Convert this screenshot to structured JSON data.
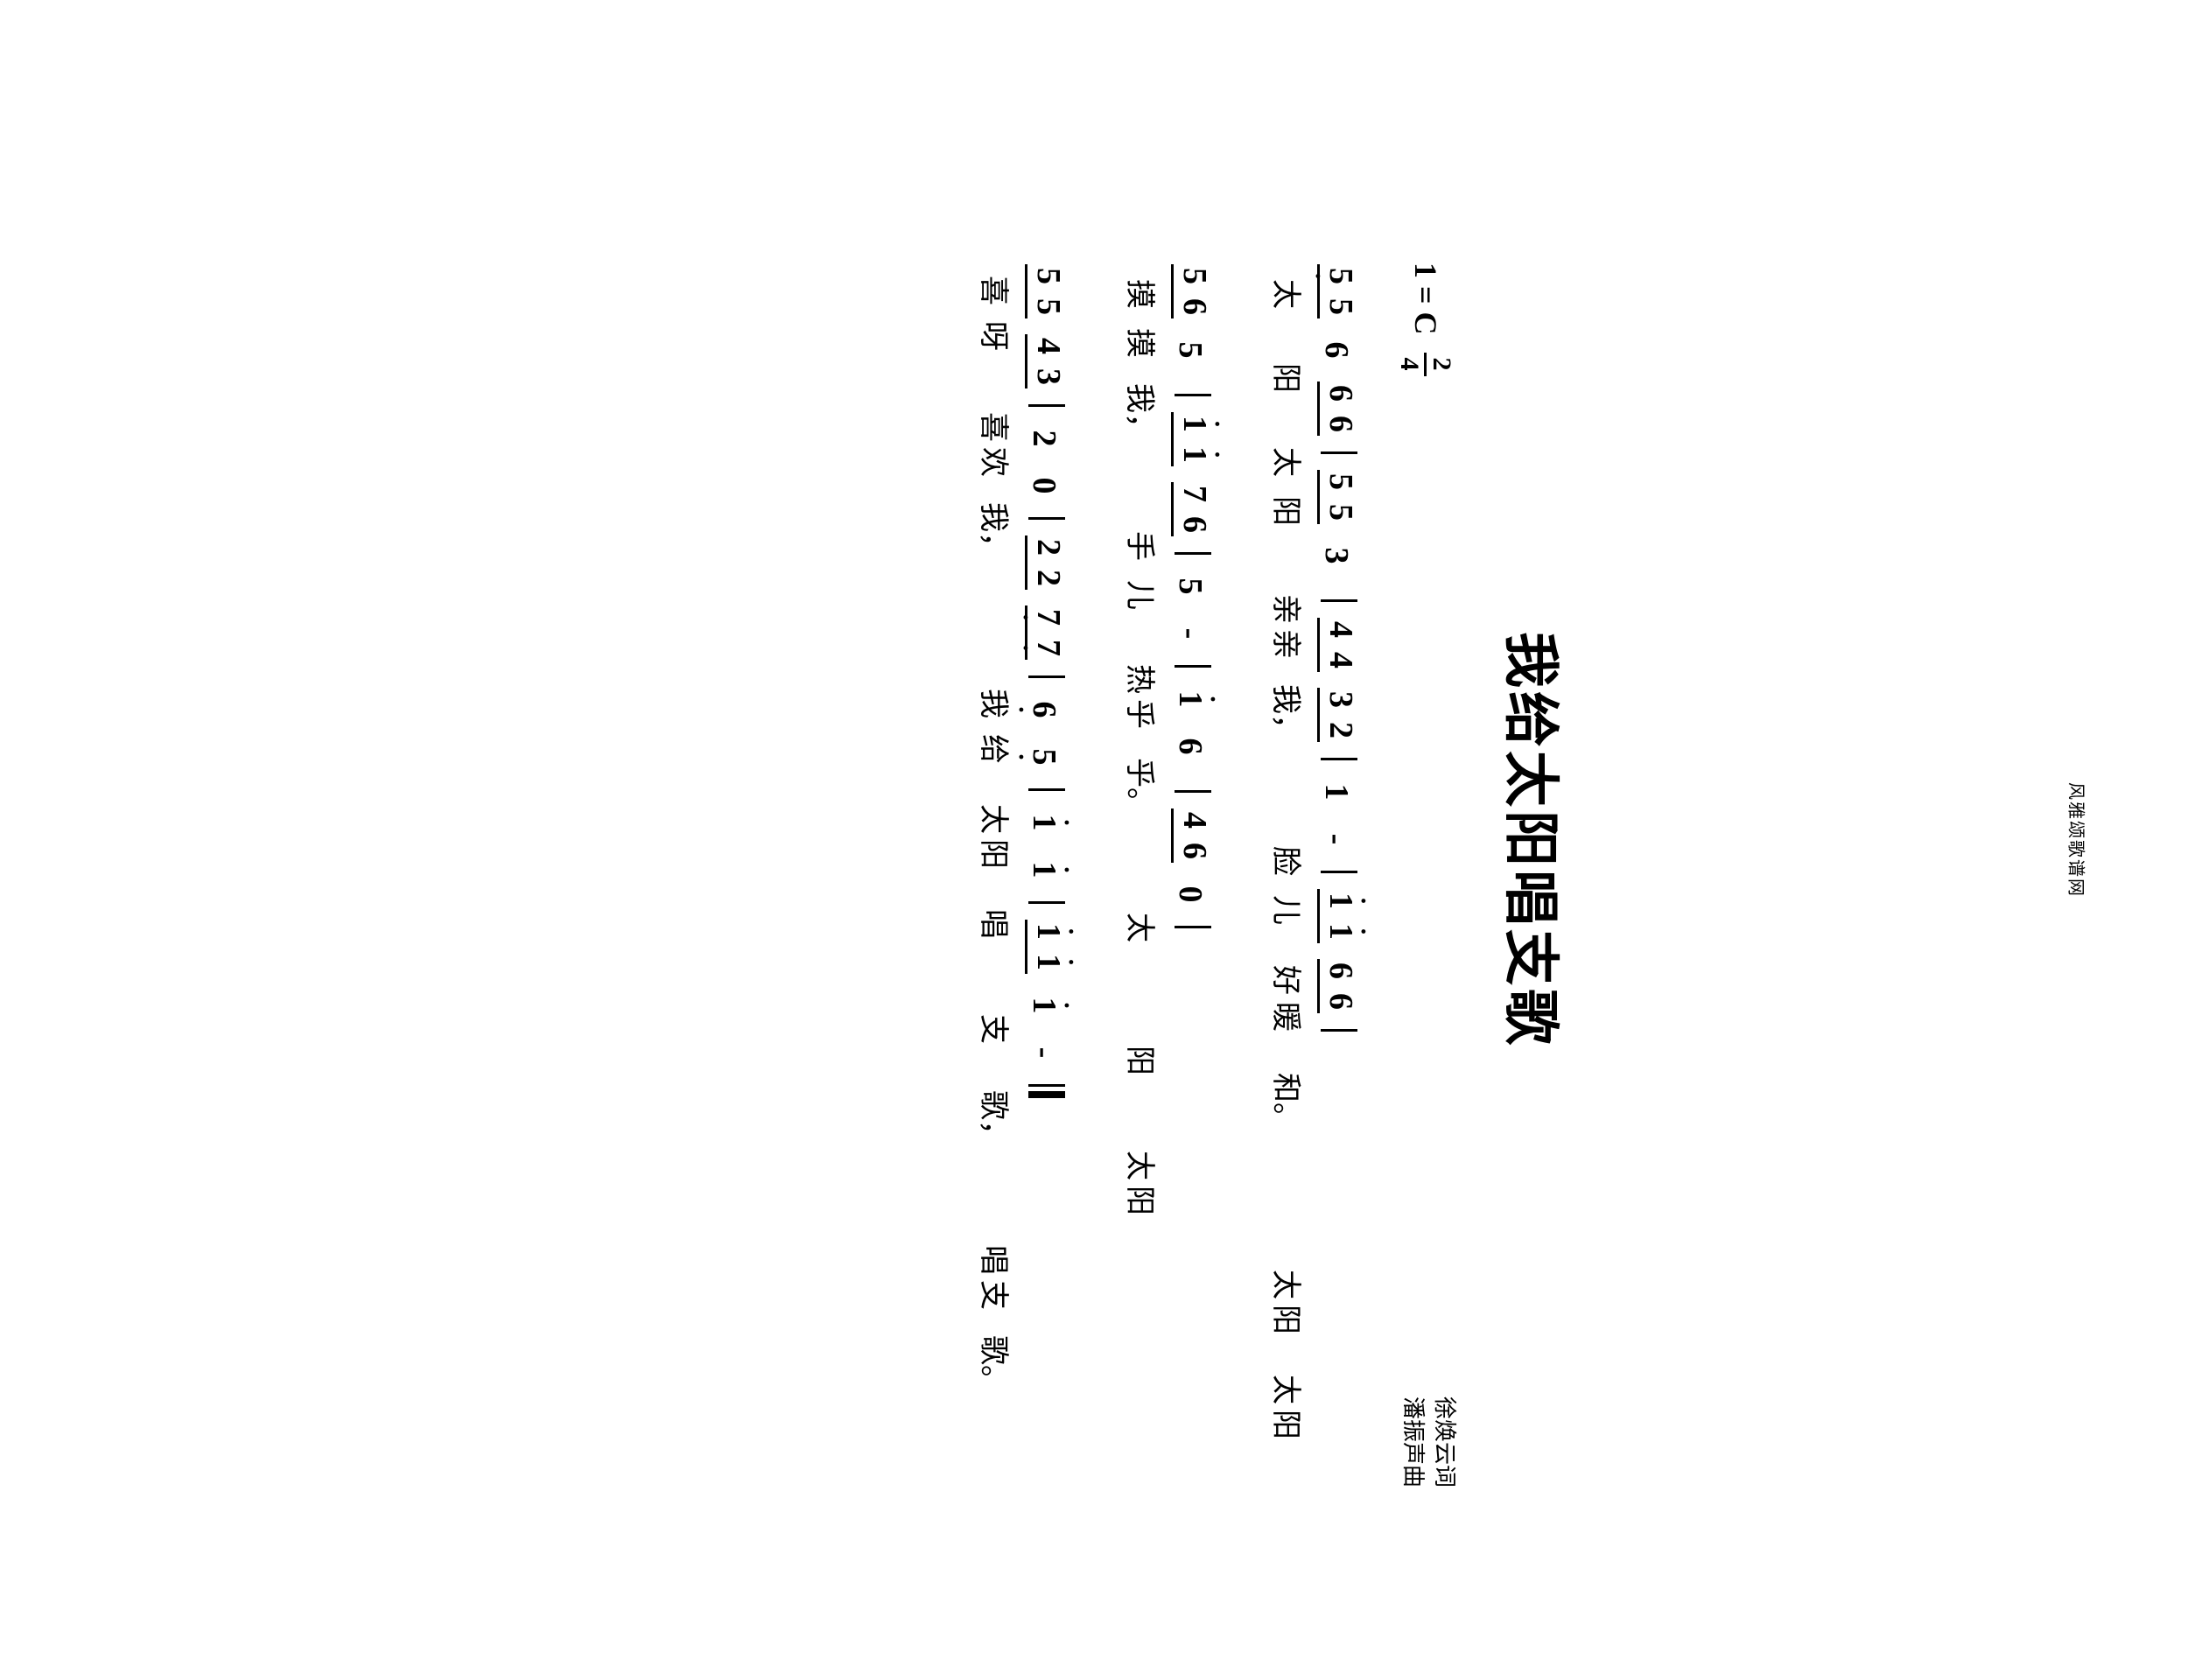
{
  "title": "我给太阳唱支歌",
  "key": "1 = C",
  "time_num": "2",
  "time_den": "4",
  "lyricist": "徐焕云词",
  "composer": "潘振声曲",
  "footer": "风雅颂歌谱网",
  "lines": [
    {
      "cells": [
        {
          "t": "beam",
          "n": [
            "5",
            "5"
          ],
          "dot": [
            "below",
            ""
          ]
        },
        {
          "t": "sp"
        },
        {
          "t": "n",
          "v": "6"
        },
        {
          "t": "sp"
        },
        {
          "t": "beam",
          "n": [
            "6",
            "6"
          ]
        },
        {
          "t": "bar"
        },
        {
          "t": "beam",
          "n": [
            "5",
            "5"
          ]
        },
        {
          "t": "sp"
        },
        {
          "t": "n",
          "v": "3"
        },
        {
          "t": "sp"
        },
        {
          "t": "bar"
        },
        {
          "t": "beam",
          "n": [
            "4",
            "4"
          ]
        },
        {
          "t": "sp"
        },
        {
          "t": "beam",
          "n": [
            "3",
            "2"
          ]
        },
        {
          "t": "bar"
        },
        {
          "t": "n",
          "v": "1"
        },
        {
          "t": "sp"
        },
        {
          "t": "dash"
        },
        {
          "t": "bar"
        },
        {
          "t": "beam",
          "n": [
            "1",
            "1"
          ],
          "dot": [
            "above",
            "above"
          ]
        },
        {
          "t": "sp"
        },
        {
          "t": "beam",
          "n": [
            "6",
            "6"
          ]
        },
        {
          "t": "bar"
        }
      ],
      "lyrics": [
        "太",
        "",
        "阳",
        "",
        "太",
        "阳",
        "",
        "亲",
        "亲",
        "",
        "我，",
        "",
        "",
        "脸",
        "儿",
        "",
        "好",
        "暖",
        "",
        "和。",
        "",
        "",
        "",
        "太",
        "阳",
        "",
        "太",
        "阳",
        ""
      ]
    },
    {
      "cells": [
        {
          "t": "beam",
          "n": [
            "5",
            "6"
          ]
        },
        {
          "t": "sp"
        },
        {
          "t": "n",
          "v": "5"
        },
        {
          "t": "sp"
        },
        {
          "t": "bar"
        },
        {
          "t": "beam",
          "n": [
            "i",
            "i"
          ],
          "dot": [
            "above",
            "above"
          ]
        },
        {
          "t": "sp"
        },
        {
          "t": "beam",
          "n": [
            "7",
            "6"
          ]
        },
        {
          "t": "bar"
        },
        {
          "t": "n",
          "v": "5"
        },
        {
          "t": "sp"
        },
        {
          "t": "dash"
        },
        {
          "t": "bar"
        },
        {
          "t": "n",
          "v": "i",
          "dot": "above"
        },
        {
          "t": "sp"
        },
        {
          "t": "n",
          "v": "6"
        },
        {
          "t": "sp"
        },
        {
          "t": "bar"
        },
        {
          "t": "beam",
          "n": [
            "4",
            "6"
          ]
        },
        {
          "t": "sp"
        },
        {
          "t": "n",
          "v": "0"
        },
        {
          "t": "bar"
        }
      ],
      "lyrics": [
        "摸",
        "摸",
        "",
        "我，",
        "",
        "",
        "手",
        "儿",
        "",
        "热",
        "乎",
        "",
        "乎。",
        "",
        "",
        "",
        "太",
        "",
        "",
        "阳",
        "",
        "",
        "太",
        "阳",
        "",
        ""
      ]
    },
    {
      "cells": [
        {
          "t": "beam",
          "n": [
            "5",
            "5"
          ]
        },
        {
          "t": "sp"
        },
        {
          "t": "beam",
          "n": [
            "4",
            "3"
          ]
        },
        {
          "t": "bar"
        },
        {
          "t": "n",
          "v": "2"
        },
        {
          "t": "sp"
        },
        {
          "t": "n",
          "v": "0"
        },
        {
          "t": "bar"
        },
        {
          "t": "beam",
          "n": [
            "2",
            "2"
          ]
        },
        {
          "t": "sp"
        },
        {
          "t": "beam",
          "n": [
            "7",
            "7"
          ],
          "dot": [
            "below",
            "below"
          ]
        },
        {
          "t": "bar"
        },
        {
          "t": "n",
          "v": "6",
          "dot": "below"
        },
        {
          "t": "sp"
        },
        {
          "t": "n",
          "v": "5",
          "dot": "below"
        },
        {
          "t": "bar"
        },
        {
          "t": "n",
          "v": "i",
          "dot": "above"
        },
        {
          "t": "sp"
        },
        {
          "t": "n",
          "v": "i",
          "dot": "above"
        },
        {
          "t": "bar"
        },
        {
          "t": "beam",
          "n": [
            "i",
            "i"
          ],
          "dot": [
            "above",
            "above"
          ]
        },
        {
          "t": "sp"
        },
        {
          "t": "n",
          "v": "i",
          "dot": "above"
        },
        {
          "t": "sp"
        },
        {
          "t": "dash"
        },
        {
          "t": "dbar"
        }
      ],
      "lyrics": [
        "喜",
        "呀",
        "",
        "喜",
        "欢",
        "",
        "我，",
        "",
        "",
        "",
        "我",
        "给",
        "",
        "太",
        "阳",
        "",
        "唱",
        "",
        "",
        "支",
        "",
        "歌，",
        "",
        "",
        "",
        "唱",
        "支",
        "",
        "歌。",
        "",
        "",
        ""
      ]
    }
  ]
}
